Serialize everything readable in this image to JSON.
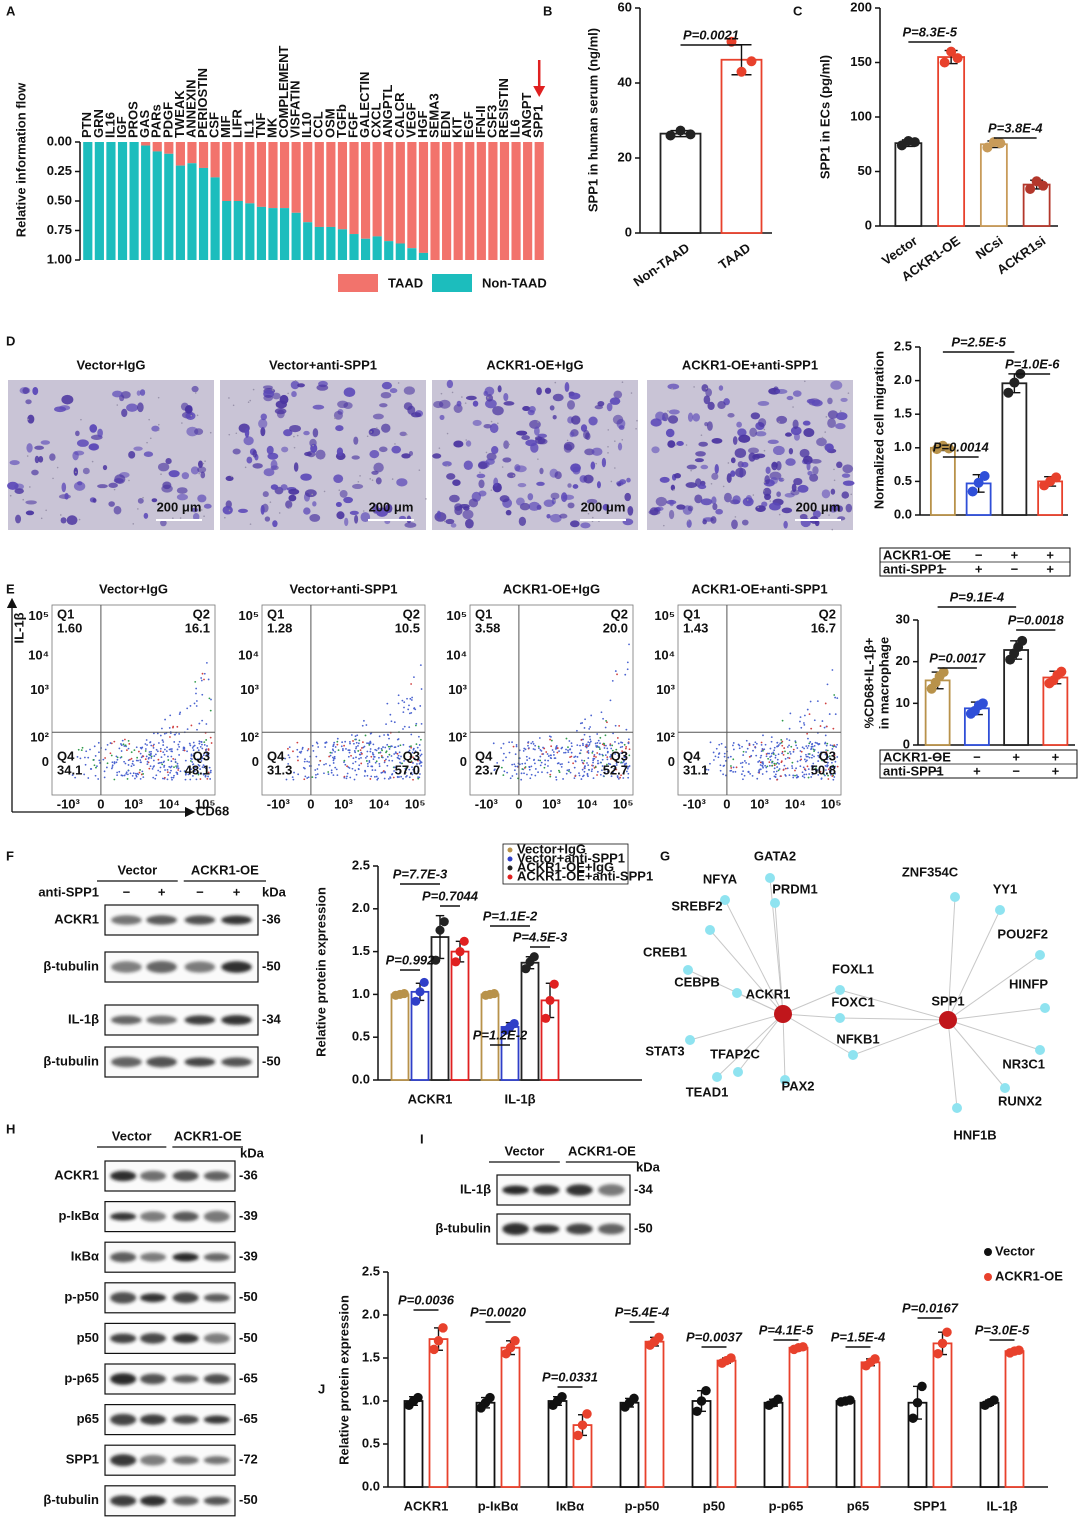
{
  "panel_labels": [
    "A",
    "B",
    "C",
    "D",
    "E",
    "F",
    "G",
    "H",
    "I",
    "J"
  ],
  "chart_data": [
    {
      "type": "stacked_bar",
      "ylabel": "Relative information flow",
      "categories": [
        "PTN",
        "GRN",
        "IL16",
        "IGF",
        "PROS",
        "GAS",
        "PARs",
        "PDGF",
        "TWEAK",
        "ANNEXIN",
        "PERIOSTIN",
        "CSF",
        "MIF",
        "LIFR",
        "IL1",
        "TNF",
        "MK",
        "COMPLEMENT",
        "VISFATIN",
        "IL10",
        "CCL",
        "OSM",
        "TGFb",
        "FGF",
        "GALECTIN",
        "CXCL",
        "ANGPTL",
        "CALCR",
        "VEGF",
        "HGF",
        "SEMA3",
        "EDN",
        "KIT",
        "EGF",
        "IFN-II",
        "CSF3",
        "RESISTIN",
        "IL6",
        "ANGPT",
        "SPP1"
      ],
      "series": [
        {
          "name": "TAAD",
          "color": "#f2736c",
          "values": [
            0,
            0,
            0,
            0,
            0,
            0.03,
            0.08,
            0.1,
            0.2,
            0.18,
            0.22,
            0.3,
            0.5,
            0.5,
            0.52,
            0.55,
            0.56,
            0.56,
            0.6,
            0.68,
            0.72,
            0.72,
            0.74,
            0.78,
            0.82,
            0.8,
            0.84,
            0.86,
            0.9,
            0.94,
            1,
            1,
            1,
            1,
            1,
            1,
            1,
            1,
            1,
            1
          ]
        },
        {
          "name": "Non-TAAD",
          "color": "#1cbdbd",
          "values": [
            1,
            1,
            1,
            1,
            1,
            0.97,
            0.92,
            0.9,
            0.8,
            0.82,
            0.78,
            0.7,
            0.5,
            0.5,
            0.48,
            0.45,
            0.44,
            0.44,
            0.4,
            0.32,
            0.28,
            0.28,
            0.26,
            0.22,
            0.18,
            0.2,
            0.16,
            0.14,
            0.1,
            0.06,
            0,
            0,
            0,
            0,
            0,
            0,
            0,
            0,
            0,
            0
          ]
        }
      ],
      "ylim": [
        0,
        1
      ],
      "inverted": true,
      "yticks": [
        {
          "value": 0,
          "label": "0.00"
        },
        {
          "value": 0.25,
          "label": "0.25"
        },
        {
          "value": 0.5,
          "label": "0.50"
        },
        {
          "value": 0.75,
          "label": "0.75"
        },
        {
          "value": 1,
          "label": "1.00"
        }
      ],
      "highlight": "SPP1",
      "highlight_color": "#e02020"
    },
    {
      "type": "bar",
      "ylabel": "SPP1 in human serum (ng/ml)",
      "categories": [
        "Non-TAAD",
        "TAAD"
      ],
      "series": [
        {
          "colors": [
            "#222222",
            "#e8412c"
          ],
          "values": [
            26.5,
            46.2
          ],
          "errors": [
            0.8,
            4
          ],
          "points": [
            [
              26,
              27.3,
              26.3
            ],
            [
              51,
              43,
              45.8
            ]
          ]
        }
      ],
      "ylim": [
        0,
        60
      ],
      "yticks": [
        0,
        20,
        40,
        60
      ],
      "annotations": [
        "P=0.0021"
      ]
    },
    {
      "type": "bar",
      "ylabel": "SPP1 in ECs (pg/ml)",
      "categories": [
        "Vector",
        "ACKR1-OE",
        "NCsi",
        "ACKR1si"
      ],
      "series": [
        {
          "colors": [
            "#222222",
            "#e8412c",
            "#c89b5a",
            "#b3372b"
          ],
          "values": [
            76,
            155,
            75,
            38
          ],
          "errors": [
            3,
            6,
            3,
            4
          ],
          "points": [
            [
              74,
              78,
              77
            ],
            [
              150,
              160,
              154
            ],
            [
              72,
              77,
              76
            ],
            [
              34,
              41,
              37
            ]
          ]
        }
      ],
      "ylim": [
        0,
        200
      ],
      "yticks": [
        0,
        50,
        100,
        150,
        200
      ],
      "annotations": [
        "P=8.3E-5",
        "P=3.8E-4"
      ]
    },
    {
      "type": "bar",
      "ylabel": "Normalized cell migration",
      "categories": [
        null,
        null,
        null,
        null
      ],
      "series": [
        {
          "colors": [
            "#b8924a",
            "#2f4fd8",
            "#222222",
            "#e8412c"
          ],
          "values": [
            1.0,
            0.47,
            1.96,
            0.5
          ],
          "errors": [
            0.04,
            0.13,
            0.14,
            0.07
          ],
          "points": [
            [
              0.98,
              1.03,
              0.99
            ],
            [
              0.35,
              0.48,
              0.58
            ],
            [
              1.82,
              1.97,
              2.1
            ],
            [
              0.44,
              0.5,
              0.56
            ]
          ]
        }
      ],
      "ylim": [
        0,
        2.5
      ],
      "yticks": [
        {
          "value": 0,
          "label": "0.0"
        },
        0.5,
        {
          "value": 1,
          "label": "1.0"
        },
        1.5,
        {
          "value": 2,
          "label": "2.0"
        },
        2.5
      ],
      "annotations": [
        "P=0.0014",
        "P=2.5E-5",
        "P=1.0E-6"
      ],
      "conditions": [
        {
          "name": "ACKR1-OE",
          "marks": [
            "−",
            "−",
            "+",
            "+"
          ]
        },
        {
          "name": "anti-SPP1",
          "marks": [
            "−",
            "+",
            "−",
            "+"
          ]
        }
      ]
    },
    {
      "type": "bar",
      "ylabel": [
        "%CD68+IL-1β+",
        "in macrophage"
      ],
      "categories": [
        null,
        null,
        null,
        null
      ],
      "series": [
        {
          "colors": [
            "#b8924a",
            "#2f4fd8",
            "#222222",
            "#e8412c"
          ],
          "values": [
            15.5,
            8.8,
            22.8,
            16.2
          ],
          "errors": [
            2,
            1.5,
            2.2,
            1.5
          ],
          "points": [
            [
              13.5,
              15,
              16.5,
              17.5
            ],
            [
              7.5,
              8.2,
              9.5,
              10
            ],
            [
              20.5,
              22,
              23.5,
              25
            ],
            [
              14.8,
              15.5,
              16.8,
              17.6
            ]
          ]
        }
      ],
      "ylim": [
        0,
        30
      ],
      "yticks": [
        0,
        10,
        20,
        30
      ],
      "annotations": [
        "P=9.1E-4",
        "P=0.0017",
        "P=0.0018"
      ],
      "conditions": [
        {
          "name": "ACKR1-OE",
          "marks": [
            "−",
            "−",
            "+",
            "+"
          ]
        },
        {
          "name": "anti-SPP1",
          "marks": [
            "−",
            "+",
            "−",
            "+"
          ]
        }
      ]
    },
    {
      "type": "bar",
      "ylabel": "Relative protein expression",
      "categories": [
        "ACKR1",
        "IL-1β"
      ],
      "series": [
        {
          "name": "Vector+IgG",
          "color": "#b8924a",
          "values": [
            1.0,
            1.0
          ],
          "errors": [
            0.02,
            0.02
          ],
          "points": [
            [
              0.99,
              1.0,
              1.01
            ],
            [
              0.99,
              1.0,
              1.01
            ]
          ]
        },
        {
          "name": "Vector+anti-SPP1",
          "color": "#2f3fc8",
          "values": [
            1.03,
            0.62
          ],
          "errors": [
            0.1,
            0.05
          ],
          "points": [
            [
              0.92,
              1.03,
              1.14
            ],
            [
              0.58,
              0.62,
              0.66
            ]
          ]
        },
        {
          "name": "ACKR1-OE+IgG",
          "color": "#222222",
          "values": [
            1.67,
            1.37
          ],
          "errors": [
            0.25,
            0.07
          ],
          "points": [
            [
              1.4,
              1.75,
              1.85
            ],
            [
              1.3,
              1.38,
              1.44
            ]
          ]
        },
        {
          "name": "ACKR1-OE+anti-SPP1",
          "color": "#e02020",
          "values": [
            1.5,
            0.93
          ],
          "errors": [
            0.12,
            0.2
          ],
          "points": [
            [
              1.38,
              1.5,
              1.62
            ],
            [
              0.72,
              0.93,
              1.12
            ]
          ]
        }
      ],
      "ylim": [
        0,
        2.5
      ],
      "yticks": [
        {
          "value": 0,
          "label": "0.0"
        },
        0.5,
        {
          "value": 1,
          "label": "1.0"
        },
        1.5,
        {
          "value": 2,
          "label": "2.0"
        },
        2.5
      ],
      "annotations": [
        "P=7.7E-3",
        "P=0.7044",
        "P=0.992",
        "P=1.1E-2",
        "P=4.5E-3",
        "P=1.2E-2"
      ],
      "legend": "top-right"
    },
    {
      "type": "bar",
      "ylabel": "Relative protein expression",
      "categories": [
        "ACKR1",
        "p-IκBα",
        "IκBα",
        "p-p50",
        "p50",
        "p-p65",
        "p65",
        "SPP1",
        "IL-1β"
      ],
      "series": [
        {
          "name": "Vector",
          "color": "#111111",
          "values": [
            1.0,
            0.98,
            1.0,
            0.98,
            1.0,
            0.98,
            1.0,
            0.98,
            0.98
          ],
          "errors": [
            0.05,
            0.06,
            0.05,
            0.05,
            0.12,
            0.04,
            0.01,
            0.19,
            0.03
          ],
          "points": [
            [
              0.95,
              1.0,
              1.04
            ],
            [
              0.92,
              0.98,
              1.04
            ],
            [
              0.95,
              1.0,
              1.05
            ],
            [
              0.93,
              0.98,
              1.03
            ],
            [
              0.88,
              1.0,
              1.12
            ],
            [
              0.95,
              0.98,
              1.02
            ],
            [
              0.99,
              1.0,
              1.01
            ],
            [
              0.8,
              0.98,
              1.17
            ],
            [
              0.95,
              0.98,
              1.01
            ]
          ]
        },
        {
          "name": "ACKR1-OE",
          "color": "#e8412c",
          "values": [
            1.72,
            1.62,
            0.72,
            1.69,
            1.47,
            1.62,
            1.45,
            1.67,
            1.58
          ],
          "errors": [
            0.13,
            0.08,
            0.12,
            0.05,
            0.03,
            0.02,
            0.04,
            0.13,
            0.02
          ],
          "points": [
            [
              1.6,
              1.7,
              1.85
            ],
            [
              1.55,
              1.62,
              1.7
            ],
            [
              0.6,
              0.72,
              0.85
            ],
            [
              1.65,
              1.69,
              1.74
            ],
            [
              1.44,
              1.47,
              1.5
            ],
            [
              1.6,
              1.62,
              1.63
            ],
            [
              1.41,
              1.45,
              1.49
            ],
            [
              1.55,
              1.67,
              1.8
            ],
            [
              1.56,
              1.58,
              1.59
            ]
          ]
        }
      ],
      "ylim": [
        0,
        2.5
      ],
      "yticks": [
        {
          "value": 0,
          "label": "0.0"
        },
        0.5,
        {
          "value": 1,
          "label": "1.0"
        },
        1.5,
        {
          "value": 2,
          "label": "2.0"
        },
        2.5
      ],
      "annotations": [
        "P=0.0036",
        "P=0.0020",
        "P=0.0331",
        "P=5.4E-4",
        "P=0.0037",
        "P=4.1E-5",
        "P=1.5E-4",
        "P=0.0167",
        "P=3.0E-5"
      ],
      "legend": "top-right"
    }
  ],
  "micrographs": {
    "titles": [
      "Vector+IgG",
      "Vector+anti-SPP1",
      "ACKR1-OE+IgG",
      "ACKR1-OE+anti-SPP1"
    ],
    "scale": "200 μm"
  },
  "flow": {
    "y_label": "IL-1β",
    "x_label": "CD68",
    "xticks": [
      "-10³",
      "0",
      "10³",
      "10⁴",
      "10⁵"
    ],
    "yticks": [
      "10⁵",
      "10⁴",
      "10³",
      "10²",
      "0"
    ],
    "plots": [
      {
        "title": "Vector+IgG",
        "quadrants": [
          {
            "name": "Q1",
            "value": "1.60"
          },
          {
            "name": "Q2",
            "value": "16.1"
          },
          {
            "name": "Q4",
            "value": "34.1"
          },
          {
            "name": "Q3",
            "value": "48.1"
          }
        ]
      },
      {
        "title": "Vector+anti-SPP1",
        "quadrants": [
          {
            "name": "Q1",
            "value": "1.28"
          },
          {
            "name": "Q2",
            "value": "10.5"
          },
          {
            "name": "Q4",
            "value": "31.3"
          },
          {
            "name": "Q3",
            "value": "57.0"
          }
        ]
      },
      {
        "title": "ACKR1-OE+IgG",
        "quadrants": [
          {
            "name": "Q1",
            "value": "3.58"
          },
          {
            "name": "Q2",
            "value": "20.0"
          },
          {
            "name": "Q4",
            "value": "23.7"
          },
          {
            "name": "Q3",
            "value": "52.7"
          }
        ]
      },
      {
        "title": "ACKR1-OE+anti-SPP1",
        "quadrants": [
          {
            "name": "Q1",
            "value": "1.43"
          },
          {
            "name": "Q2",
            "value": "16.7"
          },
          {
            "name": "Q4",
            "value": "31.1"
          },
          {
            "name": "Q3",
            "value": "50.8"
          }
        ]
      }
    ]
  },
  "blots_F": {
    "groups": [
      "Vector",
      "ACKR1-OE"
    ],
    "treatment": "anti-SPP1",
    "marks": [
      "−",
      "+",
      "−",
      "+"
    ],
    "unit": "kDa",
    "rows": [
      {
        "label": "ACKR1",
        "size": "-36"
      },
      {
        "label": "β-tubulin",
        "size": "-50"
      },
      {
        "label": "IL-1β",
        "size": "-34"
      },
      {
        "label": "β-tubulin",
        "size": "-50"
      }
    ]
  },
  "network": {
    "nodes": [
      {
        "label": "ACKR1",
        "hub": true
      },
      {
        "label": "SPP1",
        "hub": true
      },
      {
        "label": "GATA2"
      },
      {
        "label": "NFYA"
      },
      {
        "label": "PRDM1"
      },
      {
        "label": "SREBF2"
      },
      {
        "label": "CREB1"
      },
      {
        "label": "CEBPB"
      },
      {
        "label": "STAT3"
      },
      {
        "label": "TEAD1"
      },
      {
        "label": "TFAP2C"
      },
      {
        "label": "PAX2"
      },
      {
        "label": "FOXL1"
      },
      {
        "label": "FOXC1"
      },
      {
        "label": "NFKB1",
        "bold": true
      },
      {
        "label": "ZNF354C"
      },
      {
        "label": "YY1"
      },
      {
        "label": "POU2F2"
      },
      {
        "label": "HINFP"
      },
      {
        "label": "NR3C1"
      },
      {
        "label": "RUNX2"
      },
      {
        "label": "HNF1B"
      }
    ]
  },
  "blots_H": {
    "groups": [
      "Vector",
      "ACKR1-OE"
    ],
    "unit": "kDa",
    "rows": [
      {
        "label": "ACKR1",
        "size": "-36"
      },
      {
        "label": "p-IκBα",
        "size": "-39"
      },
      {
        "label": "IκBα",
        "size": "-39"
      },
      {
        "label": "p-p50",
        "size": "-50"
      },
      {
        "label": "p50",
        "size": "-50"
      },
      {
        "label": "p-p65",
        "size": "-65"
      },
      {
        "label": "p65",
        "size": "-65"
      },
      {
        "label": "SPP1",
        "size": "-72"
      },
      {
        "label": "β-tubulin",
        "size": "-50"
      }
    ]
  },
  "blots_I": {
    "groups": [
      "Vector",
      "ACKR1-OE"
    ],
    "unit": "kDa",
    "rows": [
      {
        "label": "IL-1β",
        "size": "-34"
      },
      {
        "label": "β-tubulin",
        "size": "-50"
      }
    ]
  }
}
